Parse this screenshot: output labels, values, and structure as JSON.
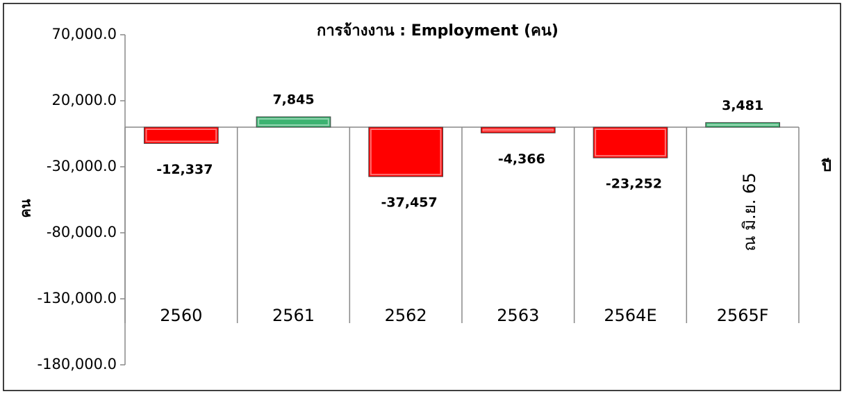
{
  "chart_data": {
    "type": "bar",
    "title": "การจ้างงาน : Employment (คน)",
    "y_label": "คน",
    "x_label": "ปี",
    "annotation": "ณ มิ.ย. 65",
    "categories": [
      "2560",
      "2561",
      "2562",
      "2563",
      "2564E",
      "2565F"
    ],
    "values": [
      -12337,
      7845,
      -37457,
      -4366,
      -23252,
      3481
    ],
    "value_labels": [
      "-12,337",
      "7,845",
      "-37,457",
      "-4,366",
      "-23,252",
      "3,481"
    ],
    "colors": [
      "#ff0000",
      "#3cb371",
      "#ff0000",
      "#ff0000",
      "#ff0000",
      "#3cb371"
    ],
    "ylim": [
      -180000,
      70000
    ],
    "yticks": [
      {
        "value": 70000,
        "label": "70,000.0"
      },
      {
        "value": 20000,
        "label": "20,000.0"
      },
      {
        "value": -30000,
        "label": "-30,000.0"
      },
      {
        "value": -80000,
        "label": "-80,000.0"
      },
      {
        "value": -130000,
        "label": "-130,000.0"
      },
      {
        "value": -180000,
        "label": "-180,000.0"
      }
    ]
  }
}
